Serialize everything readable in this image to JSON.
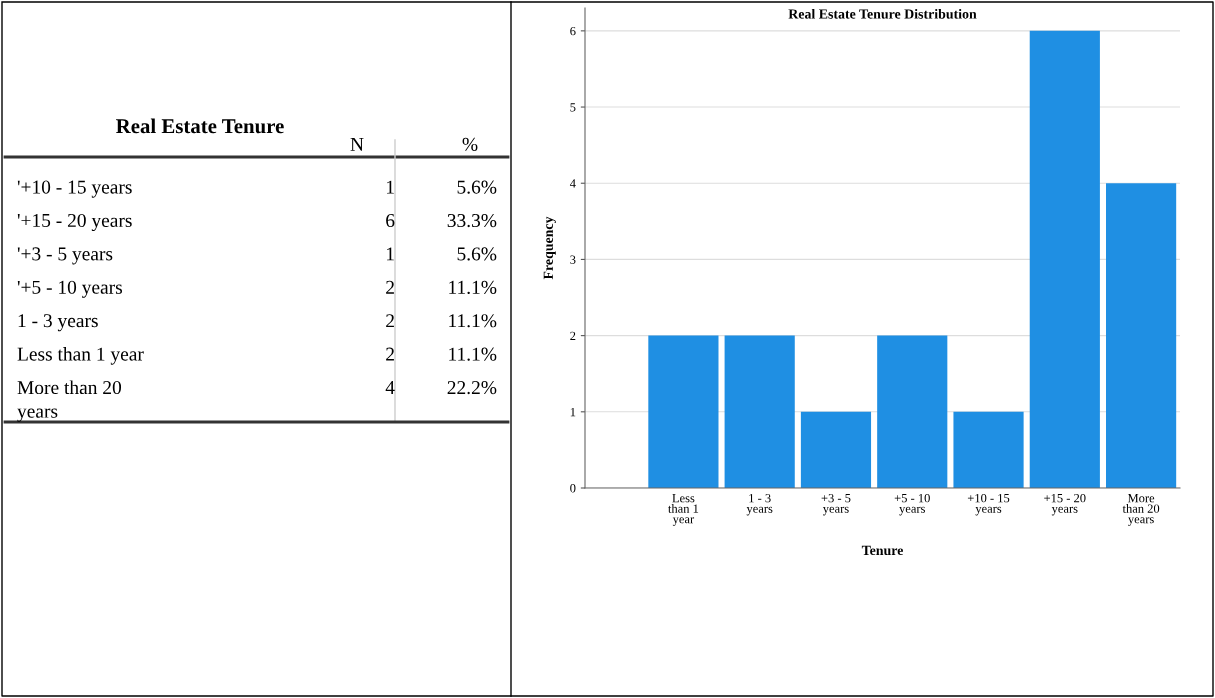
{
  "chart_data": [
    {
      "type": "other",
      "title": "Real Estate Tenure",
      "data_labels": true,
      "categories": [
        "'+10 - 15 years",
        "'+15 - 20 years",
        "'+3 - 5 years",
        "'+5 - 10 years",
        "1 - 3 years",
        "Less than 1 year",
        "More than 20\nyears"
      ],
      "series": [
        {
          "name": "N",
          "values": [
            1,
            6,
            1,
            2,
            2,
            2,
            4
          ]
        },
        {
          "name": "%",
          "values": [
            5.6,
            33.3,
            5.6,
            11.1,
            11.1,
            11.1,
            22.2
          ],
          "value_labels": [
            "5.6%",
            "33.3%",
            "5.6%",
            "11.1%",
            "11.1%",
            "11.1%",
            "22.2%"
          ]
        }
      ]
    },
    {
      "type": "bar",
      "title": "Real Estate Tenure Distribution",
      "xlabel": "Tenure",
      "ylabel": "Frequency",
      "categories": [
        "Less\nthan 1\nyear",
        "1 - 3\nyears",
        "+3 - 5\nyears",
        "+5 - 10\nyears",
        "+10 - 15\nyears",
        "+15 - 20\nyears",
        "More\nthan 20\nyears"
      ],
      "values": [
        2,
        2,
        1,
        2,
        1,
        6,
        4
      ],
      "color": "#1f8fe3",
      "ylim": [
        0,
        6.3
      ],
      "yticks": [
        0,
        1,
        2,
        3,
        4,
        5,
        6
      ],
      "grid": "y"
    }
  ]
}
